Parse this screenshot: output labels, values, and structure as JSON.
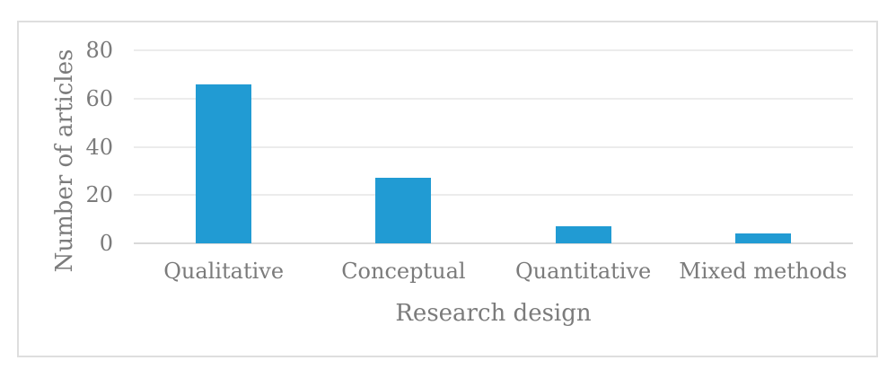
{
  "chart_data": {
    "type": "bar",
    "categories": [
      "Qualitative",
      "Conceptual",
      "Quantitative",
      "Mixed methods"
    ],
    "values": [
      66,
      27,
      7,
      4
    ],
    "title": "",
    "xlabel": "Research design",
    "ylabel": "Number of articles",
    "ylim": [
      0,
      80
    ],
    "yticks": [
      0,
      20,
      40,
      60,
      80
    ],
    "bar_color": "#219bd3",
    "grid": true,
    "legend": false
  }
}
